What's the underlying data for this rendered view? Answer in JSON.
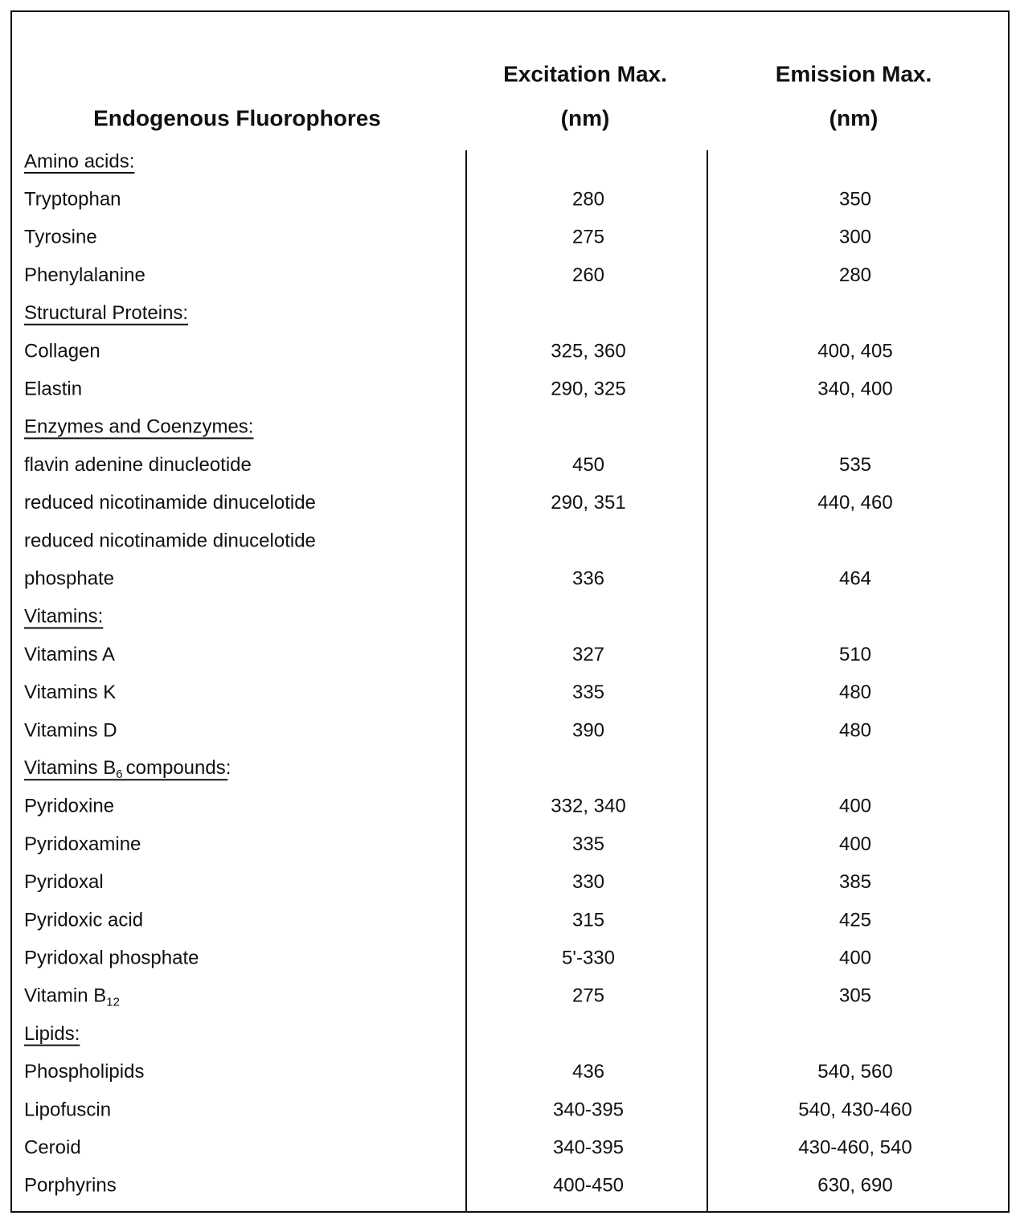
{
  "table": {
    "columns": [
      {
        "title": "Endogenous Fluorophores"
      },
      {
        "title": "Excitation Max.",
        "unit": "(nm)"
      },
      {
        "title": "Emission Max.",
        "unit": "(nm)"
      }
    ],
    "rows": [
      {
        "label": "Amino acids:",
        "section": true
      },
      {
        "label": "Tryptophan",
        "excitation": "280",
        "emission": "350"
      },
      {
        "label": "Tyrosine",
        "excitation": "275",
        "emission": "300"
      },
      {
        "label": "Phenylalanine",
        "excitation": "260",
        "emission": "280"
      },
      {
        "label": "Structural Proteins:",
        "section": true
      },
      {
        "label": "Collagen",
        "excitation": "325, 360",
        "emission": "400, 405"
      },
      {
        "label": "Elastin",
        "excitation": "290, 325",
        "emission": "340, 400"
      },
      {
        "label": "Enzymes and Coenzymes:",
        "section": true
      },
      {
        "label": "flavin adenine dinucleotide",
        "excitation": "450",
        "emission": "535"
      },
      {
        "label": "reduced nicotinamide dinucelotide",
        "excitation": "290, 351",
        "emission": "440, 460"
      },
      {
        "label": "reduced nicotinamide dinucelotide"
      },
      {
        "label": "phosphate",
        "excitation": "336",
        "emission": "464"
      },
      {
        "label": "Vitamins:",
        "section": true
      },
      {
        "label": "Vitamins A",
        "excitation": "327",
        "emission": "510"
      },
      {
        "label": "Vitamins K",
        "excitation": "335",
        "emission": "480"
      },
      {
        "label": "Vitamins D",
        "excitation": "390",
        "emission": "480"
      },
      {
        "label": "Vitamins B",
        "label_sub": "6",
        "label_rest": "compounds:",
        "section": true
      },
      {
        "label": "Pyridoxine",
        "excitation": "332, 340",
        "emission": "400"
      },
      {
        "label": "Pyridoxamine",
        "excitation": "335",
        "emission": "400"
      },
      {
        "label": "Pyridoxal",
        "excitation": "330",
        "emission": "385"
      },
      {
        "label": "Pyridoxic acid",
        "excitation": "315",
        "emission": "425"
      },
      {
        "label": "Pyridoxal phosphate",
        "excitation": "5'-330",
        "emission": "400"
      },
      {
        "label": "Vitamin B",
        "label_sub": "12",
        "excitation": "275",
        "emission": "305"
      },
      {
        "label": "Lipids:",
        "section": true
      },
      {
        "label": "Phospholipids",
        "excitation": "436",
        "emission": "540, 560"
      },
      {
        "label": "Lipofuscin",
        "excitation": "340-395",
        "emission": "540, 430-460"
      },
      {
        "label": "Ceroid",
        "excitation": "340-395",
        "emission": "430-460, 540"
      },
      {
        "label": "Porphyrins",
        "excitation": "400-450",
        "emission": "630, 690"
      }
    ]
  }
}
